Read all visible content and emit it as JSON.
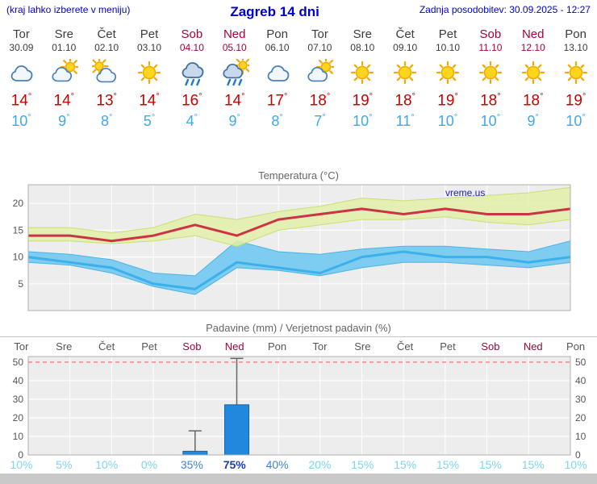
{
  "header": {
    "left_note": "(kraj lahko izberete v meniju)",
    "title": "Zagreb 14 dni",
    "updated": "Zadnja posodobitev: 30.09.2025 - 12:27"
  },
  "colors": {
    "accent_blue": "#0000cc",
    "weekend_red": "#a80038",
    "temp_max_red": "#cc0000",
    "temp_min_blue": "#3ea8e8",
    "tmax_line": "#cc3344",
    "tmin_line": "#3bb0ec",
    "tmax_band": "#e2f0a8",
    "tmax_band_edge": "#c9e070",
    "tmin_band": "#7ecdf0",
    "tmin_band_edge": "#49b4e8",
    "plot_bg": "#ededed",
    "plot_border": "#b0b0b0",
    "bar_fill": "#2288dd",
    "bar_edge": "#1166aa",
    "whisker": "#666666",
    "limit_line_red": "#f08080"
  },
  "days": [
    {
      "name": "Tor",
      "date": "30.09",
      "icon": "cloudy",
      "tmax": 14,
      "tmin": 10,
      "weekend": false
    },
    {
      "name": "Sre",
      "date": "01.10",
      "icon": "partly-cloudy",
      "tmax": 14,
      "tmin": 9,
      "weekend": false
    },
    {
      "name": "Čet",
      "date": "02.10",
      "icon": "mostly-cloudy",
      "tmax": 13,
      "tmin": 8,
      "weekend": false
    },
    {
      "name": "Pet",
      "date": "03.10",
      "icon": "sunny",
      "tmax": 14,
      "tmin": 5,
      "weekend": false
    },
    {
      "name": "Sob",
      "date": "04.10",
      "icon": "rain",
      "tmax": 16,
      "tmin": 4,
      "weekend": true
    },
    {
      "name": "Ned",
      "date": "05.10",
      "icon": "rain-sun",
      "tmax": 14,
      "tmin": 9,
      "weekend": true
    },
    {
      "name": "Pon",
      "date": "06.10",
      "icon": "cloudy",
      "tmax": 17,
      "tmin": 8,
      "weekend": false
    },
    {
      "name": "Tor",
      "date": "07.10",
      "icon": "partly-cloudy",
      "tmax": 18,
      "tmin": 7,
      "weekend": false
    },
    {
      "name": "Sre",
      "date": "08.10",
      "icon": "sunny",
      "tmax": 19,
      "tmin": 10,
      "weekend": false
    },
    {
      "name": "Čet",
      "date": "09.10",
      "icon": "sunny",
      "tmax": 18,
      "tmin": 11,
      "weekend": false
    },
    {
      "name": "Pet",
      "date": "10.10",
      "icon": "sunny",
      "tmax": 19,
      "tmin": 10,
      "weekend": false
    },
    {
      "name": "Sob",
      "date": "11.10",
      "icon": "sunny",
      "tmax": 18,
      "tmin": 10,
      "weekend": true
    },
    {
      "name": "Ned",
      "date": "12.10",
      "icon": "sunny",
      "tmax": 18,
      "tmin": 9,
      "weekend": true
    },
    {
      "name": "Pon",
      "date": "13.10",
      "icon": "sunny",
      "tmax": 19,
      "tmin": 10,
      "weekend": false
    }
  ],
  "chart_data": [
    {
      "type": "line",
      "title": "Temperatura (°C)",
      "watermark": "vreme.us",
      "categories": [
        "Tor 30.09",
        "Sre 01.10",
        "Čet 02.10",
        "Pet 03.10",
        "Sob 04.10",
        "Ned 05.10",
        "Pon 06.10",
        "Tor 07.10",
        "Sre 08.10",
        "Čet 09.10",
        "Pet 10.10",
        "Sob 11.10",
        "Ned 12.10",
        "Pon 13.10"
      ],
      "ylim": [
        0,
        23.5
      ],
      "yticks": [
        5,
        10,
        15,
        20
      ],
      "grid": true,
      "series": [
        {
          "name": "tmax",
          "values": [
            14,
            14,
            13,
            14,
            16,
            14,
            17,
            18,
            19,
            18,
            19,
            18,
            18,
            19
          ]
        },
        {
          "name": "tmin",
          "values": [
            10,
            9,
            8,
            5,
            4,
            9,
            8,
            7,
            10,
            11,
            10,
            10,
            9,
            10
          ]
        },
        {
          "name": "tmax_range_high",
          "values": [
            15.5,
            15.5,
            14.5,
            15.5,
            18,
            17,
            18.5,
            19.5,
            21,
            20.5,
            21,
            21.5,
            22,
            23
          ]
        },
        {
          "name": "tmax_range_low",
          "values": [
            13,
            13,
            12.5,
            13,
            14,
            12,
            15,
            16,
            17,
            17,
            17.5,
            16.5,
            16,
            17
          ]
        },
        {
          "name": "tmin_range_high",
          "values": [
            11,
            10.5,
            9.5,
            7,
            6.5,
            13,
            11,
            10.5,
            11.5,
            12,
            12,
            11.5,
            11,
            13
          ]
        },
        {
          "name": "tmin_range_low",
          "values": [
            9,
            8.5,
            7,
            4.5,
            3,
            8,
            7.5,
            6.5,
            8,
            9,
            9,
            8.5,
            8,
            9
          ]
        }
      ]
    },
    {
      "type": "bar",
      "title": "Padavine (mm) / Verjetnost padavin (%)",
      "categories": [
        "Tor",
        "Sre",
        "Čet",
        "Pet",
        "Sob",
        "Ned",
        "Pon",
        "Tor",
        "Sre",
        "Čet",
        "Pet",
        "Sob",
        "Ned",
        "Pon"
      ],
      "ylim": [
        0,
        53
      ],
      "yticks": [
        0,
        10,
        20,
        30,
        40,
        50
      ],
      "grid": true,
      "values": [
        0,
        0,
        0,
        0,
        2,
        27,
        0,
        0,
        0,
        0,
        0,
        0,
        0,
        0
      ],
      "range_max": [
        0,
        0,
        0,
        0,
        13,
        52,
        0,
        0,
        0,
        0,
        0,
        0,
        0,
        0
      ],
      "probabilities_pct": [
        10,
        5,
        10,
        0,
        35,
        75,
        40,
        20,
        15,
        15,
        15,
        15,
        15,
        10
      ]
    }
  ]
}
